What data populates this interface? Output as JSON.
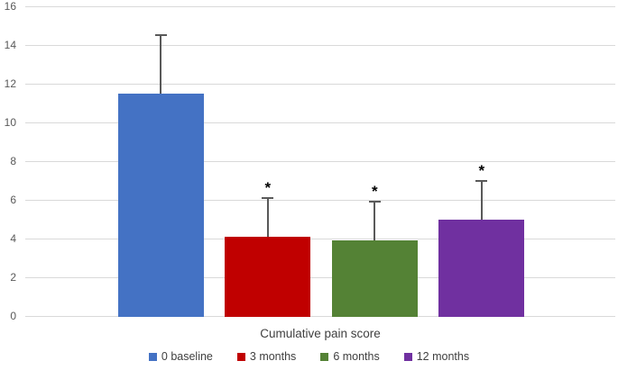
{
  "chart_data": {
    "type": "bar",
    "title": "",
    "xlabel": "Cumulative pain score",
    "ylabel": "",
    "ylim": [
      0,
      16
    ],
    "ytick_step": 2,
    "ytick_labels": [
      "0",
      "2",
      "4",
      "6",
      "8",
      "10",
      "12",
      "14",
      "16"
    ],
    "categories": [
      "Cumulative pain score"
    ],
    "series": [
      {
        "name": "0 baseline",
        "value": 11.5,
        "error_up": 3.0,
        "significant": false,
        "color": "#4472C4"
      },
      {
        "name": "3 months",
        "value": 4.1,
        "error_up": 2.0,
        "significant": true,
        "color": "#C00000"
      },
      {
        "name": "6 months",
        "value": 3.9,
        "error_up": 2.0,
        "significant": true,
        "color": "#548235"
      },
      {
        "name": "12 months",
        "value": 5.0,
        "error_up": 2.0,
        "significant": true,
        "color": "#7030A0"
      }
    ],
    "significance_marker": "*",
    "error_bars": "upper whisker with cap",
    "grid": true,
    "legend_position": "bottom"
  },
  "colors": {
    "background": "#FFFFFF",
    "gridline": "#D9D9D9",
    "error_bar": "#595959",
    "tick_text": "#595959",
    "label_text": "#404040",
    "asterisk": "#000000"
  }
}
